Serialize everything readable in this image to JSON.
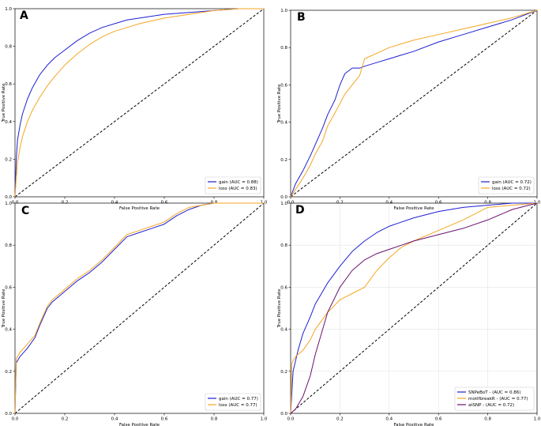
{
  "figure": {
    "description_free": true
  },
  "colors": {
    "blue": "#1f1fd1",
    "orange": "#f5a623",
    "purple": "#6a1170",
    "diagonal": "#000000"
  },
  "chart_data": [
    {
      "type": "line",
      "panel": "A",
      "xlabel": "False Positive Rate",
      "ylabel": "True Positive Rate",
      "xlim": [
        0,
        1
      ],
      "ylim": [
        0,
        1
      ],
      "ticks": [
        "0.0",
        "0.2",
        "0.4",
        "0.6",
        "0.8",
        "1.0"
      ],
      "grid": false,
      "legend_position": "bottom-right",
      "series": [
        {
          "name": "gain (AUC = 0.88)",
          "color": "#1f1fd1",
          "x": [
            0,
            0.005,
            0.01,
            0.02,
            0.03,
            0.05,
            0.07,
            0.1,
            0.13,
            0.16,
            0.2,
            0.25,
            0.3,
            0.35,
            0.4,
            0.45,
            0.5,
            0.6,
            0.7,
            0.8,
            0.9,
            1.0
          ],
          "y": [
            0,
            0.2,
            0.3,
            0.38,
            0.44,
            0.52,
            0.58,
            0.65,
            0.7,
            0.74,
            0.78,
            0.83,
            0.87,
            0.9,
            0.92,
            0.94,
            0.95,
            0.97,
            0.98,
            0.99,
            1.0,
            1.0
          ]
        },
        {
          "name": "loss (AUC = 0.83)",
          "color": "#f5a623",
          "x": [
            0,
            0.005,
            0.01,
            0.02,
            0.03,
            0.05,
            0.07,
            0.1,
            0.13,
            0.16,
            0.2,
            0.25,
            0.3,
            0.35,
            0.4,
            0.45,
            0.5,
            0.6,
            0.7,
            0.8,
            0.9,
            1.0
          ],
          "y": [
            0,
            0.1,
            0.18,
            0.26,
            0.32,
            0.4,
            0.46,
            0.53,
            0.59,
            0.64,
            0.7,
            0.76,
            0.81,
            0.85,
            0.88,
            0.9,
            0.92,
            0.95,
            0.97,
            0.99,
            1.0,
            1.0
          ]
        }
      ]
    },
    {
      "type": "line",
      "panel": "B",
      "xlabel": "False Positive Rate",
      "ylabel": "True Positive Rate",
      "xlim": [
        0,
        1
      ],
      "ylim": [
        0,
        1
      ],
      "ticks": [
        "0.0",
        "0.2",
        "0.4",
        "0.6",
        "0.8",
        "1.0"
      ],
      "grid": false,
      "legend_position": "bottom-right",
      "series": [
        {
          "name": "gain (AUC = 0.72)",
          "color": "#1f1fd1",
          "x": [
            0,
            0.02,
            0.05,
            0.08,
            0.1,
            0.13,
            0.15,
            0.18,
            0.2,
            0.22,
            0.25,
            0.28,
            0.3,
            0.35,
            0.4,
            0.45,
            0.5,
            0.6,
            0.7,
            0.8,
            0.9,
            1.0
          ],
          "y": [
            0,
            0.07,
            0.14,
            0.22,
            0.28,
            0.37,
            0.44,
            0.52,
            0.6,
            0.66,
            0.69,
            0.69,
            0.7,
            0.72,
            0.74,
            0.76,
            0.78,
            0.83,
            0.87,
            0.91,
            0.95,
            1.0
          ]
        },
        {
          "name": "loss (AUC = 0.72)",
          "color": "#f5a623",
          "x": [
            0,
            0.02,
            0.05,
            0.08,
            0.1,
            0.13,
            0.15,
            0.18,
            0.2,
            0.22,
            0.25,
            0.28,
            0.3,
            0.35,
            0.4,
            0.45,
            0.5,
            0.6,
            0.7,
            0.8,
            0.9,
            1.0
          ],
          "y": [
            0,
            0.04,
            0.1,
            0.17,
            0.23,
            0.3,
            0.38,
            0.45,
            0.5,
            0.55,
            0.6,
            0.65,
            0.74,
            0.77,
            0.8,
            0.82,
            0.84,
            0.87,
            0.9,
            0.93,
            0.96,
            1.0
          ]
        }
      ]
    },
    {
      "type": "line",
      "panel": "C",
      "xlabel": "False Positive Rate",
      "ylabel": "True Positive Rate",
      "xlim": [
        0,
        1
      ],
      "ylim": [
        0,
        1
      ],
      "ticks": [
        "0.0",
        "0.2",
        "0.4",
        "0.6",
        "0.8",
        "1.0"
      ],
      "grid": false,
      "legend_position": "bottom-right",
      "series": [
        {
          "name": "gain (AUC = 0.77)",
          "color": "#1f1fd1",
          "x": [
            0,
            0.005,
            0.02,
            0.05,
            0.08,
            0.1,
            0.13,
            0.15,
            0.2,
            0.25,
            0.3,
            0.35,
            0.4,
            0.45,
            0.5,
            0.55,
            0.6,
            0.65,
            0.7,
            0.75,
            0.8,
            1.0
          ],
          "y": [
            0,
            0.24,
            0.27,
            0.31,
            0.36,
            0.42,
            0.5,
            0.53,
            0.58,
            0.63,
            0.67,
            0.72,
            0.78,
            0.84,
            0.86,
            0.88,
            0.9,
            0.94,
            0.97,
            0.99,
            1.0,
            1.0
          ]
        },
        {
          "name": "loss (AUC = 0.77)",
          "color": "#f5a623",
          "x": [
            0,
            0.005,
            0.02,
            0.05,
            0.08,
            0.1,
            0.13,
            0.15,
            0.2,
            0.25,
            0.3,
            0.35,
            0.4,
            0.45,
            0.5,
            0.55,
            0.6,
            0.65,
            0.7,
            0.75,
            0.8,
            1.0
          ],
          "y": [
            0,
            0.26,
            0.29,
            0.33,
            0.37,
            0.43,
            0.51,
            0.54,
            0.59,
            0.64,
            0.68,
            0.73,
            0.79,
            0.85,
            0.87,
            0.89,
            0.91,
            0.95,
            0.98,
            0.99,
            1.0,
            1.0
          ]
        }
      ]
    },
    {
      "type": "line",
      "panel": "D",
      "xlabel": "False Positive Rate",
      "ylabel": "True Positive Rate",
      "xlim": [
        0,
        1
      ],
      "ylim": [
        0,
        1
      ],
      "ticks": [
        "0.0",
        "0.2",
        "0.4",
        "0.6",
        "0.8",
        "1.0"
      ],
      "grid": true,
      "legend_position": "bottom-right",
      "series": [
        {
          "name": "SNPeBoT - (AUC = 0.86)",
          "color": "#1f1fd1",
          "x": [
            0,
            0.01,
            0.03,
            0.05,
            0.08,
            0.1,
            0.15,
            0.2,
            0.25,
            0.3,
            0.35,
            0.4,
            0.45,
            0.5,
            0.6,
            0.7,
            0.8,
            0.9,
            1.0
          ],
          "y": [
            0,
            0.2,
            0.3,
            0.38,
            0.46,
            0.52,
            0.62,
            0.7,
            0.77,
            0.82,
            0.86,
            0.89,
            0.91,
            0.93,
            0.96,
            0.98,
            0.99,
            1.0,
            1.0
          ]
        },
        {
          "name": "motifbreakR - (AUC = 0.77)",
          "color": "#f5a623",
          "x": [
            0,
            0.005,
            0.02,
            0.05,
            0.08,
            0.1,
            0.15,
            0.2,
            0.25,
            0.3,
            0.35,
            0.4,
            0.45,
            0.5,
            0.6,
            0.7,
            0.8,
            0.9,
            1.0
          ],
          "y": [
            0,
            0.24,
            0.27,
            0.3,
            0.35,
            0.4,
            0.48,
            0.54,
            0.57,
            0.6,
            0.68,
            0.74,
            0.79,
            0.82,
            0.87,
            0.92,
            0.98,
            0.99,
            1.0
          ]
        },
        {
          "name": "atSNP - (AUC = 0.72)",
          "color": "#6a1170",
          "x": [
            0,
            0.02,
            0.05,
            0.08,
            0.1,
            0.13,
            0.15,
            0.2,
            0.25,
            0.3,
            0.35,
            0.4,
            0.45,
            0.5,
            0.6,
            0.7,
            0.8,
            0.9,
            1.0
          ],
          "y": [
            0,
            0.02,
            0.08,
            0.18,
            0.28,
            0.4,
            0.48,
            0.6,
            0.68,
            0.73,
            0.76,
            0.78,
            0.8,
            0.82,
            0.85,
            0.88,
            0.92,
            0.97,
            1.0
          ]
        }
      ]
    }
  ]
}
